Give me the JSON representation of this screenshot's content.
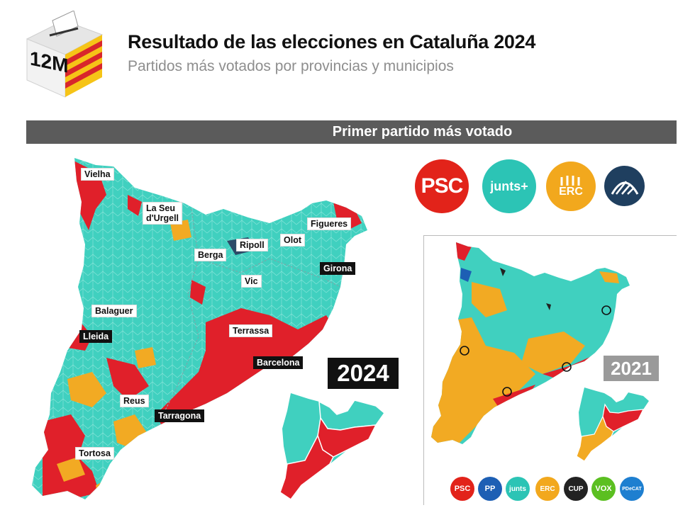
{
  "header": {
    "title": "Resultado de las elecciones en Cataluña 2024",
    "subtitle": "Partidos más votados por provincias y municipios",
    "ballot_label": "12M"
  },
  "banner": {
    "label": "Primer partido más votado"
  },
  "legend_main": [
    {
      "label": "PSC",
      "color": "#e2231a"
    },
    {
      "label": "junts+",
      "color": "#2cc4b5"
    },
    {
      "label": "ERC",
      "color": "#f2a81d"
    },
    {
      "label": "",
      "color": "#1f3f5f",
      "icon": "aliança-catalana-icon"
    }
  ],
  "map_2024": {
    "year": "2024",
    "colors": {
      "junts": "#40d0bf",
      "psc": "#e0202a",
      "erc": "#f2aa23",
      "ac": "#2c4a68"
    },
    "cities": [
      {
        "name": "Vielha",
        "capital": false
      },
      {
        "name": "La Seu\nd'Urgell",
        "capital": false
      },
      {
        "name": "Figueres",
        "capital": false
      },
      {
        "name": "Ripoll",
        "capital": false
      },
      {
        "name": "Olot",
        "capital": false
      },
      {
        "name": "Berga",
        "capital": false
      },
      {
        "name": "Girona",
        "capital": true
      },
      {
        "name": "Vic",
        "capital": false
      },
      {
        "name": "Balaguer",
        "capital": false
      },
      {
        "name": "Lleida",
        "capital": true
      },
      {
        "name": "Terrassa",
        "capital": false
      },
      {
        "name": "Barcelona",
        "capital": true
      },
      {
        "name": "Reus",
        "capital": false
      },
      {
        "name": "Tarragona",
        "capital": true
      },
      {
        "name": "Tortosa",
        "capital": false
      }
    ]
  },
  "map_2021": {
    "year": "2021"
  },
  "legend_2021": [
    {
      "label": "PSC",
      "color": "#e2231a"
    },
    {
      "label": "PP",
      "color": "#1d5fb4"
    },
    {
      "label": "junts",
      "color": "#2cc4b5"
    },
    {
      "label": "ERC",
      "color": "#f2a81d"
    },
    {
      "label": "CUP",
      "color": "#222222"
    },
    {
      "label": "VOX",
      "color": "#5bbf21"
    },
    {
      "label": "PDeCAT",
      "color": "#1e7fd0"
    }
  ]
}
